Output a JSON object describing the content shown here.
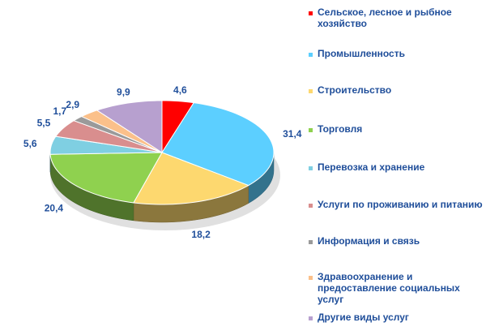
{
  "chart_data": {
    "type": "pie",
    "categories": [
      "Сельское, лесное и рыбное хозяйство",
      "Промышленность",
      "Строительство",
      "Торговля",
      "Перевозка и хранение",
      "Услуги по проживанию и питанию",
      "Информация и связь",
      "Здравоохранение и предоставление социальных услуг",
      "Другие виды услуг"
    ],
    "values": [
      4.6,
      31.4,
      18.2,
      20.4,
      5.6,
      5.5,
      1.7,
      2.9,
      9.9
    ],
    "value_labels": [
      "4,6",
      "31,4",
      "18,2",
      "20,4",
      "5,6",
      "5,5",
      "1,7",
      "2,9",
      "9,9"
    ],
    "colors": [
      "#ff0000",
      "#5ccfff",
      "#fdd86f",
      "#8fd14f",
      "#7fcfe2",
      "#d98e8e",
      "#9a9a9a",
      "#fbc08a",
      "#b7a0cf"
    ],
    "legend_position": "right",
    "style": "3d"
  }
}
